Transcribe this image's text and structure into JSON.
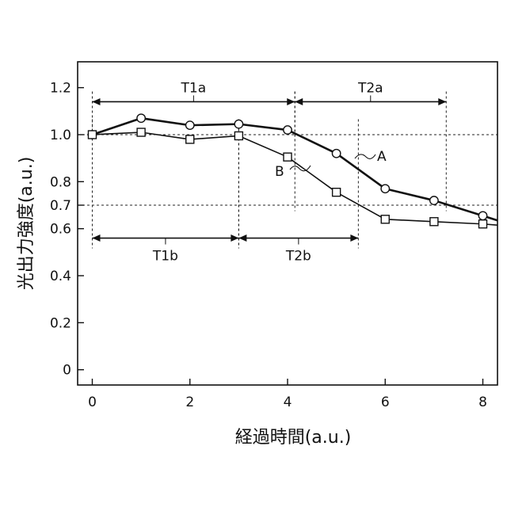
{
  "chart_data": {
    "type": "line",
    "xlabel": "経過時間(a.u.)",
    "ylabel": "光出力強度(a.u.)",
    "xlim": [
      -0.3,
      8.3
    ],
    "ylim": [
      -0.065,
      1.31
    ],
    "x_ticks": [
      0,
      2,
      4,
      6,
      8
    ],
    "x_tick_labels": [
      "0",
      "2",
      "4",
      "6",
      "8"
    ],
    "y_ticks": [
      0,
      0.2,
      0.4,
      0.6,
      0.7,
      0.8,
      1.0,
      1.2
    ],
    "y_tick_labels": [
      "0",
      "0.2",
      "0.4",
      "0.6",
      "0.7",
      "0.8",
      "1.0",
      "1.2"
    ],
    "grid": false,
    "reference_lines_y": [
      1.0,
      0.7
    ],
    "series": [
      {
        "name": "A",
        "marker": "circle",
        "x": [
          0,
          1,
          2,
          3,
          4,
          5,
          6,
          7,
          8,
          8.3
        ],
        "y": [
          1.0,
          1.07,
          1.04,
          1.045,
          1.02,
          0.92,
          0.77,
          0.72,
          0.655,
          0.635
        ],
        "marker_count": 9
      },
      {
        "name": "B",
        "marker": "square",
        "x": [
          0,
          1,
          2,
          3,
          4,
          5,
          6,
          7,
          8,
          8.3
        ],
        "y": [
          1.0,
          1.01,
          0.98,
          0.995,
          0.905,
          0.755,
          0.64,
          0.63,
          0.62,
          0.615
        ],
        "marker_count": 9
      }
    ],
    "intervals": [
      {
        "label": "T1a",
        "x_start": 0,
        "x_end": 4.15,
        "y": 1.14,
        "label_side": "above"
      },
      {
        "label": "T2a",
        "x_start": 4.15,
        "x_end": 7.25,
        "y": 1.14,
        "label_side": "above"
      },
      {
        "label": "T1b",
        "x_start": 0,
        "x_end": 3.0,
        "y": 0.56,
        "label_side": "below"
      },
      {
        "label": "T2b",
        "x_start": 3.0,
        "x_end": 5.45,
        "y": 0.56,
        "label_side": "below"
      }
    ],
    "series_labels": [
      {
        "text": "A",
        "series": "A"
      },
      {
        "text": "B",
        "series": "B"
      }
    ]
  }
}
